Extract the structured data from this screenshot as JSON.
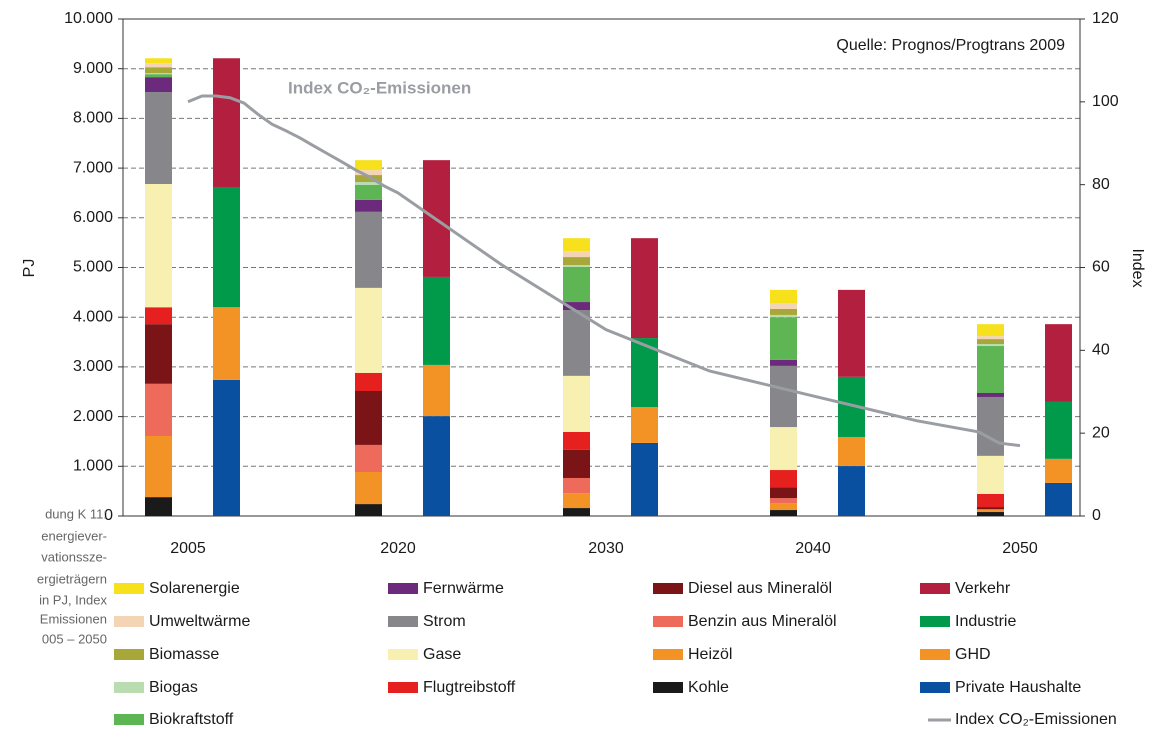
{
  "chart_data": {
    "type": "bar",
    "stacked": true,
    "categories": [
      "2005",
      "2020",
      "2030",
      "2040",
      "2050"
    ],
    "ylabel": "PJ",
    "y2label": "Index",
    "ylim": [
      0,
      10000
    ],
    "yticks": [
      0,
      {
        "value": 1000,
        "label": "1.000"
      },
      {
        "value": 2000,
        "label": "2.000"
      },
      {
        "value": 3000,
        "label": "3.000"
      },
      {
        "value": 4000,
        "label": "4.000"
      },
      {
        "value": 5000,
        "label": "5.000"
      },
      {
        "value": 6000,
        "label": "6.000"
      },
      {
        "value": 7000,
        "label": "7.000"
      },
      {
        "value": 8000,
        "label": "8.000"
      },
      {
        "value": 9000,
        "label": "9.000"
      },
      {
        "value": 10000,
        "label": "10.000"
      }
    ],
    "y2lim": [
      0,
      120
    ],
    "y2ticks": [
      0,
      20,
      40,
      60,
      80,
      100,
      120
    ],
    "grid": true,
    "annotations": [
      "Quelle: Prognos/Progtrans 2009",
      "Index CO₂-Emissionen"
    ],
    "caption": [
      "dung K 11:",
      "energiever-",
      "vationssze-",
      "ergieträgern",
      "in PJ, Index",
      "Emissionen",
      "005 – 2050"
    ],
    "series": [
      {
        "name": "Solarenergie",
        "stack": "carriers",
        "color": "#f7e11d",
        "values": [
          100,
          200,
          260,
          265,
          240
        ]
      },
      {
        "name": "Umweltwärme",
        "stack": "carriers",
        "color": "#f3d5b5",
        "values": [
          80,
          100,
          120,
          120,
          60
        ]
      },
      {
        "name": "Biomasse",
        "stack": "carriers",
        "color": "#a8a83a",
        "values": [
          120,
          140,
          160,
          120,
          100
        ]
      },
      {
        "name": "Biogas",
        "stack": "carriers",
        "color": "#b9dcb0",
        "values": [
          20,
          60,
          40,
          45,
          40
        ]
      },
      {
        "name": "Biokraftstoff",
        "stack": "carriers",
        "color": "#5db554",
        "values": [
          60,
          300,
          705,
          860,
          945
        ]
      },
      {
        "name": "Fernwärme",
        "stack": "carriers",
        "color": "#6b2a7b",
        "values": [
          300,
          240,
          160,
          120,
          80
        ]
      },
      {
        "name": "Strom",
        "stack": "carriers",
        "color": "#87878b",
        "values": [
          1850,
          1530,
          1325,
          1230,
          1185
        ]
      },
      {
        "name": "Gase",
        "stack": "carriers",
        "color": "#f7f0b0",
        "values": [
          2480,
          1710,
          1130,
          865,
          765
        ]
      },
      {
        "name": "Flugtreibstoff",
        "stack": "carriers",
        "color": "#e6201f",
        "values": [
          340,
          365,
          360,
          345,
          265
        ]
      },
      {
        "name": "Diesel aus Mineralöl",
        "stack": "carriers",
        "color": "#7b1416",
        "values": [
          1200,
          1085,
          565,
          220,
          40
        ]
      },
      {
        "name": "Benzin aus Mineralöl",
        "stack": "carriers",
        "color": "#ee6a5a",
        "values": [
          1050,
          545,
          305,
          100,
          20
        ]
      },
      {
        "name": "Heizöl",
        "stack": "carriers",
        "color": "#f39325",
        "values": [
          1230,
          645,
          300,
          140,
          40
        ]
      },
      {
        "name": "Kohle",
        "stack": "carriers",
        "color": "#1a1a1a",
        "values": [
          380,
          240,
          160,
          120,
          80
        ]
      },
      {
        "name": "Verkehr",
        "stack": "sectors",
        "color": "#b3203f",
        "values": [
          2590,
          2350,
          2010,
          1750,
          1565
        ]
      },
      {
        "name": "Industrie",
        "stack": "sectors",
        "color": "#009a4a",
        "values": [
          2420,
          1770,
          1390,
          1210,
          1145
        ]
      },
      {
        "name": "GHD",
        "stack": "sectors",
        "color": "#f39325",
        "values": [
          1460,
          1030,
          720,
          585,
          485
        ]
      },
      {
        "name": "Private Haushalte",
        "stack": "sectors",
        "color": "#0a50a0",
        "values": [
          2740,
          2010,
          1470,
          1005,
          665
        ]
      },
      {
        "name": "Index CO₂-Emissionen",
        "type": "line",
        "axis": "y2",
        "color": "#9a9ea3",
        "x": [
          2005,
          2006,
          2007,
          2008,
          2009,
          2010,
          2011,
          2012,
          2013,
          2014,
          2015,
          2016,
          2017,
          2018,
          2019,
          2020,
          2025,
          2030,
          2035,
          2040,
          2045,
          2048,
          2049,
          2050
        ],
        "values": [
          100,
          101.4,
          101.4,
          101,
          99.7,
          97,
          94.6,
          93,
          91.3,
          89.3,
          87.4,
          85.5,
          83.5,
          81.8,
          79.7,
          78,
          60.6,
          45,
          35,
          29,
          23,
          20.3,
          17.6,
          17
        ]
      }
    ]
  }
}
